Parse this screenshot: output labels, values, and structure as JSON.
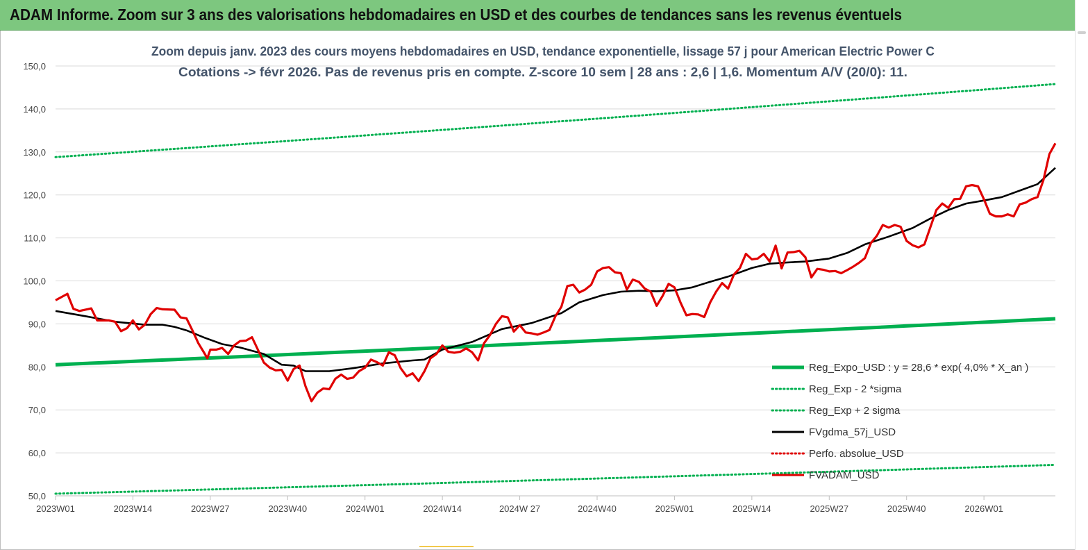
{
  "banner": {
    "title": "ADAM Informe. Zoom sur 3 ans des valorisations hebdomadaires en USD et des courbes de tendances sans les revenus éventuels"
  },
  "colors": {
    "banner_bg": "#7dc77f",
    "regression": "#00b050",
    "moving_average": "#000000",
    "price": "#e00000",
    "grid": "#d9d9d9"
  },
  "chart_data": {
    "type": "line",
    "title_lines": [
      "Zoom depuis janv. 2023 des cours moyens hebdomadaires en USD, tendance exponentielle, lissage 57 j pour American Electric Power C",
      "Cotations -> févr 2026.  Pas de revenus pris en compte. Z-score 10 sem  | 28 ans : 2,6  | 1,6. Momentum A/V (20/0): 11."
    ],
    "ylim": [
      50,
      150
    ],
    "y_ticks": [
      "50,0",
      "60,0",
      "70,0",
      "80,0",
      "90,0",
      "100,0",
      "110,0",
      "120,0",
      "130,0",
      "140,0",
      "150,0"
    ],
    "x_ticks": [
      "2023W01",
      "2023W14",
      "2023W27",
      "2023W40",
      "2024W01",
      "2024W14",
      "2024W 27",
      "2024W40",
      "2025W01",
      "2025W14",
      "2025W27",
      "2025W40",
      "2026W01"
    ],
    "x_tick_weeks": [
      0,
      13,
      26,
      39,
      52,
      65,
      78,
      91,
      104,
      117,
      130,
      143,
      156
    ],
    "grid": true,
    "legend_position": "bottom-right",
    "legend": [
      {
        "label": "Reg_Expo_USD : y = 28,6 * exp( 4,0% *  X_an )",
        "style": "solid-thick",
        "color": "#00b050"
      },
      {
        "label": "Reg_Exp - 2 *sigma",
        "style": "dotted",
        "color": "#00b050"
      },
      {
        "label": "Reg_Exp + 2 sigma",
        "style": "dotted",
        "color": "#00b050"
      },
      {
        "label": "FVgdma_57j_USD",
        "style": "solid",
        "color": "#000000"
      },
      {
        "label": "Perfo. absolue_USD",
        "style": "dotted",
        "color": "#e00000"
      },
      {
        "label": "FVADAM_USD",
        "style": "solid",
        "color": "#e00000"
      }
    ],
    "regression_start": 80.5,
    "regression_end": 91.2,
    "upper_band_start": 128.8,
    "upper_band_end": 145.8,
    "lower_band_start": 50.5,
    "lower_band_end": 57.2,
    "series": [
      {
        "name": "FVADAM_USD",
        "color": "#e00000",
        "points": [
          [
            0,
            95.5
          ],
          [
            2,
            97.0
          ],
          [
            3,
            93.5
          ],
          [
            4,
            93.0
          ],
          [
            6,
            93.6
          ],
          [
            7,
            90.8
          ],
          [
            9,
            90.8
          ],
          [
            10,
            90.5
          ],
          [
            11,
            88.3
          ],
          [
            12,
            89.0
          ],
          [
            13,
            90.8
          ],
          [
            14,
            88.7
          ],
          [
            15,
            89.8
          ],
          [
            16,
            92.3
          ],
          [
            17,
            93.7
          ],
          [
            18,
            93.4
          ],
          [
            20,
            93.3
          ],
          [
            21,
            91.5
          ],
          [
            22,
            91.3
          ],
          [
            23,
            88.5
          ],
          [
            24,
            85.5
          ],
          [
            25,
            83.2
          ],
          [
            25.5,
            82.0
          ],
          [
            26,
            84.0
          ],
          [
            27,
            84.0
          ],
          [
            28,
            84.4
          ],
          [
            29,
            83.0
          ],
          [
            30,
            85.0
          ],
          [
            31,
            86.0
          ],
          [
            32,
            86.1
          ],
          [
            33,
            86.9
          ],
          [
            34,
            84.0
          ],
          [
            35,
            81.0
          ],
          [
            36,
            79.8
          ],
          [
            37,
            79.2
          ],
          [
            38,
            79.3
          ],
          [
            39,
            76.8
          ],
          [
            40,
            79.5
          ],
          [
            41,
            80.3
          ],
          [
            42,
            75.5
          ],
          [
            43,
            72.0
          ],
          [
            44,
            74.0
          ],
          [
            45,
            75.0
          ],
          [
            46,
            74.8
          ],
          [
            47,
            77.2
          ],
          [
            48,
            78.2
          ],
          [
            49,
            77.2
          ],
          [
            50,
            77.5
          ],
          [
            51,
            79.0
          ],
          [
            52,
            79.8
          ],
          [
            53,
            81.7
          ],
          [
            54,
            81.1
          ],
          [
            55,
            80.3
          ],
          [
            56,
            83.4
          ],
          [
            57,
            82.7
          ],
          [
            58,
            79.7
          ],
          [
            59,
            77.8
          ],
          [
            60,
            78.5
          ],
          [
            61,
            76.7
          ],
          [
            62,
            79.0
          ],
          [
            63,
            82.0
          ],
          [
            64,
            83.0
          ],
          [
            65,
            85.0
          ],
          [
            66,
            83.5
          ],
          [
            67,
            83.3
          ],
          [
            68,
            83.5
          ],
          [
            69,
            84.3
          ],
          [
            70,
            83.4
          ],
          [
            71,
            81.5
          ],
          [
            72,
            85.5
          ],
          [
            73,
            87.4
          ],
          [
            74,
            90.0
          ],
          [
            75,
            91.8
          ],
          [
            76,
            91.5
          ],
          [
            77,
            88.2
          ],
          [
            78,
            89.7
          ],
          [
            79,
            88.0
          ],
          [
            80,
            87.8
          ],
          [
            81,
            87.5
          ],
          [
            82,
            88.0
          ],
          [
            83,
            88.6
          ],
          [
            84,
            91.8
          ],
          [
            85,
            94.0
          ],
          [
            86,
            98.8
          ],
          [
            87,
            99.1
          ],
          [
            88,
            97.3
          ],
          [
            89,
            98.0
          ],
          [
            90,
            99.1
          ],
          [
            91,
            102.2
          ],
          [
            92,
            103.0
          ],
          [
            93,
            103.2
          ],
          [
            94,
            102.0
          ],
          [
            95,
            101.8
          ],
          [
            96,
            98.0
          ],
          [
            97,
            100.3
          ],
          [
            98,
            99.8
          ],
          [
            99,
            98.2
          ],
          [
            100,
            97.5
          ],
          [
            101,
            94.2
          ],
          [
            102,
            96.5
          ],
          [
            103,
            99.3
          ],
          [
            104,
            98.5
          ],
          [
            105,
            95.0
          ],
          [
            106,
            92.0
          ],
          [
            107,
            92.3
          ],
          [
            108,
            92.2
          ],
          [
            109,
            91.6
          ],
          [
            110,
            95.0
          ],
          [
            111,
            97.5
          ],
          [
            112,
            99.5
          ],
          [
            113,
            98.2
          ],
          [
            114,
            101.5
          ],
          [
            115,
            103.0
          ],
          [
            116,
            106.3
          ],
          [
            117,
            105.0
          ],
          [
            118,
            105.2
          ],
          [
            119,
            106.3
          ],
          [
            120,
            104.5
          ],
          [
            121,
            108.2
          ],
          [
            122,
            102.9
          ],
          [
            123,
            106.6
          ],
          [
            124,
            106.7
          ],
          [
            125,
            107.0
          ],
          [
            126,
            105.5
          ],
          [
            127,
            100.8
          ],
          [
            128,
            102.8
          ],
          [
            129,
            102.6
          ],
          [
            130,
            102.2
          ],
          [
            131,
            102.3
          ],
          [
            132,
            101.8
          ],
          [
            133,
            102.5
          ],
          [
            134,
            103.3
          ],
          [
            135,
            104.2
          ],
          [
            136,
            105.3
          ],
          [
            137,
            108.8
          ],
          [
            138,
            110.5
          ],
          [
            139,
            113.0
          ],
          [
            140,
            112.4
          ],
          [
            141,
            113.0
          ],
          [
            142,
            112.6
          ],
          [
            143,
            109.3
          ],
          [
            144,
            108.3
          ],
          [
            145,
            107.8
          ],
          [
            146,
            108.5
          ],
          [
            147,
            112.5
          ],
          [
            148,
            116.5
          ],
          [
            149,
            118.0
          ],
          [
            150,
            117.0
          ],
          [
            151,
            119.0
          ],
          [
            152,
            119.1
          ],
          [
            153,
            122.0
          ],
          [
            154,
            122.3
          ],
          [
            155,
            122.0
          ],
          [
            156,
            119.0
          ],
          [
            157,
            115.6
          ],
          [
            158,
            115.0
          ],
          [
            159,
            115.0
          ],
          [
            160,
            115.5
          ],
          [
            161,
            115.0
          ],
          [
            162,
            117.8
          ],
          [
            163,
            118.2
          ],
          [
            164,
            119.0
          ],
          [
            165,
            119.5
          ],
          [
            166,
            123.5
          ],
          [
            167,
            129.5
          ],
          [
            168,
            132.0
          ]
        ]
      },
      {
        "name": "FVgdma_57j_USD",
        "color": "#000000",
        "points": [
          [
            0,
            93.0
          ],
          [
            5,
            91.8
          ],
          [
            10,
            90.5
          ],
          [
            15,
            89.8
          ],
          [
            18,
            89.8
          ],
          [
            20,
            89.3
          ],
          [
            22,
            88.5
          ],
          [
            25,
            86.8
          ],
          [
            28,
            85.3
          ],
          [
            31,
            84.5
          ],
          [
            35,
            83.0
          ],
          [
            38,
            80.5
          ],
          [
            40,
            80.3
          ],
          [
            42,
            79.0
          ],
          [
            46,
            79.0
          ],
          [
            50,
            79.7
          ],
          [
            55,
            80.8
          ],
          [
            60,
            81.5
          ],
          [
            62,
            81.7
          ],
          [
            65,
            84.0
          ],
          [
            70,
            85.8
          ],
          [
            75,
            88.8
          ],
          [
            80,
            90.2
          ],
          [
            85,
            92.5
          ],
          [
            88,
            95.0
          ],
          [
            92,
            96.7
          ],
          [
            95,
            97.5
          ],
          [
            98,
            97.7
          ],
          [
            101,
            97.6
          ],
          [
            104,
            97.8
          ],
          [
            107,
            98.5
          ],
          [
            110,
            99.8
          ],
          [
            113,
            101.0
          ],
          [
            117,
            103.0
          ],
          [
            120,
            104.0
          ],
          [
            123,
            104.3
          ],
          [
            126,
            104.5
          ],
          [
            130,
            105.2
          ],
          [
            133,
            106.5
          ],
          [
            136,
            108.5
          ],
          [
            140,
            110.3
          ],
          [
            144,
            112.3
          ],
          [
            147,
            114.5
          ],
          [
            150,
            116.5
          ],
          [
            153,
            118.0
          ],
          [
            156,
            118.7
          ],
          [
            159,
            119.5
          ],
          [
            162,
            121.0
          ],
          [
            165,
            122.5
          ],
          [
            168,
            126.3
          ]
        ]
      }
    ]
  }
}
